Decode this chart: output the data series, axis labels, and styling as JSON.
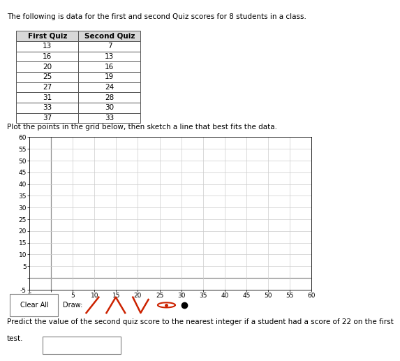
{
  "title": "The following is data for the first and second Quiz scores for 8 students in a class.",
  "table_headers": [
    "First Quiz",
    "Second Quiz"
  ],
  "first_quiz": [
    13,
    16,
    20,
    25,
    27,
    31,
    33,
    37
  ],
  "second_quiz": [
    7,
    13,
    16,
    19,
    24,
    28,
    30,
    33
  ],
  "plot_instruction": "Plot the points in the grid below, then sketch a line that best fits the data.",
  "xmin": -5,
  "xmax": 60,
  "ymin": -5,
  "ymax": 60,
  "x_tick_step": 5,
  "y_tick_step": 5,
  "xlabel_vals": [
    -5,
    5,
    10,
    15,
    20,
    25,
    30,
    35,
    40,
    45,
    50,
    55,
    60
  ],
  "ylabel_vals": [
    -5,
    5,
    10,
    15,
    20,
    25,
    30,
    35,
    40,
    45,
    50,
    55,
    60
  ],
  "predict_line1": "Predict the value of the second quiz score to the nearest integer if a student had a score of 22 on the first",
  "predict_line2": "test.",
  "clear_all_text": "Clear All",
  "draw_text": "Draw:",
  "grid_color": "#cccccc",
  "table_border_color": "#555555",
  "table_header_bg": "#d8d8d8",
  "font_size_title": 7.5,
  "font_size_table_header": 7.5,
  "font_size_table_data": 7.5,
  "font_size_axis": 6.5,
  "font_size_instruction": 7.5,
  "font_size_predict": 7.5,
  "font_size_button": 7.0,
  "icon_color": "#cc2200"
}
